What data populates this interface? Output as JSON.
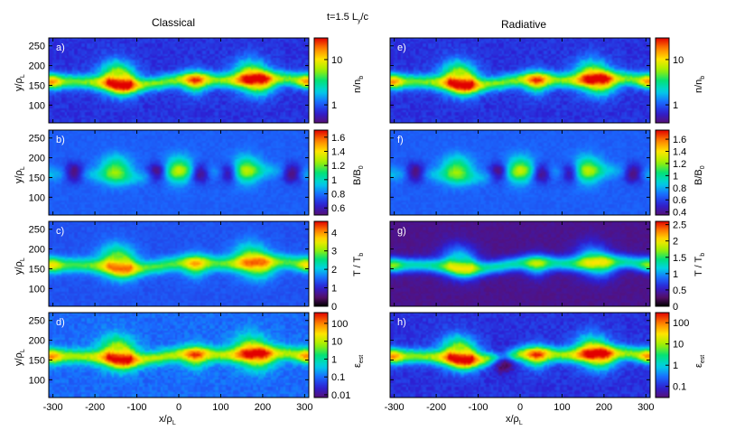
{
  "header": {
    "left_title": "Classical",
    "right_title": "Radiative",
    "time_label": "t=1.5 L",
    "time_sub": "y",
    "time_tail": "/c"
  },
  "axes": {
    "x_label": "x/ρ",
    "x_sub": "L",
    "y_label": "y/ρ",
    "y_sub": "L",
    "x_ticks": [
      "-300",
      "-200",
      "-100",
      "0",
      "100",
      "200",
      "300"
    ],
    "y_ticks": [
      "250",
      "200",
      "150",
      "100"
    ]
  },
  "chart_data": {
    "type": "heatmap",
    "xlim": [
      -310,
      310
    ],
    "ylim": [
      55,
      270
    ],
    "columns": [
      "Classical",
      "Radiative"
    ],
    "panels": [
      {
        "id": "a",
        "label": "a)",
        "column": "Classical",
        "row": 0,
        "quantity": "n/n",
        "quantity_sub": "b",
        "log": true,
        "ticks": [
          "10",
          "1"
        ],
        "tick_values": [
          10,
          1
        ],
        "range": [
          0.4,
          30
        ],
        "mode": "density"
      },
      {
        "id": "b",
        "label": "b)",
        "column": "Classical",
        "row": 1,
        "quantity": "B/B",
        "quantity_sub": "0",
        "log": false,
        "ticks": [
          "1.6",
          "1.4",
          "1.2",
          "1",
          "0.8",
          "0.6"
        ],
        "tick_values": [
          1.6,
          1.4,
          1.2,
          1.0,
          0.8,
          0.6
        ],
        "range": [
          0.5,
          1.7
        ],
        "mode": "bfield"
      },
      {
        "id": "c",
        "label": "c)",
        "column": "Classical",
        "row": 2,
        "quantity": "T / T",
        "quantity_sub": "b",
        "log": false,
        "ticks": [
          "4",
          "3",
          "2",
          "1",
          "0"
        ],
        "tick_values": [
          4,
          3,
          2,
          1,
          0
        ],
        "range": [
          0,
          4.6
        ],
        "mode": "temp"
      },
      {
        "id": "d",
        "label": "d)",
        "column": "Classical",
        "row": 3,
        "quantity": "ε",
        "quantity_sub": "est",
        "log": true,
        "ticks": [
          "100",
          "10",
          "1",
          "0.1",
          "0.01"
        ],
        "tick_values": [
          100,
          10,
          1,
          0.1,
          0.01
        ],
        "range": [
          0.007,
          400
        ],
        "mode": "energy"
      },
      {
        "id": "e",
        "label": "e)",
        "column": "Radiative",
        "row": 0,
        "quantity": "n/n",
        "quantity_sub": "b",
        "log": true,
        "ticks": [
          "10",
          "1"
        ],
        "tick_values": [
          10,
          1
        ],
        "range": [
          0.4,
          30
        ],
        "mode": "density"
      },
      {
        "id": "f",
        "label": "f)",
        "column": "Radiative",
        "row": 1,
        "quantity": "B/B",
        "quantity_sub": "0",
        "log": false,
        "ticks": [
          "1.6",
          "1.4",
          "1.2",
          "1",
          "0.8",
          "0.6",
          "0.4"
        ],
        "tick_values": [
          1.6,
          1.4,
          1.2,
          1.0,
          0.8,
          0.6,
          0.4
        ],
        "range": [
          0.35,
          1.75
        ],
        "mode": "bfield"
      },
      {
        "id": "g",
        "label": "g)",
        "column": "Radiative",
        "row": 2,
        "quantity": "T / T",
        "quantity_sub": "b",
        "log": false,
        "ticks": [
          "2.5",
          "2",
          "1.5",
          "1",
          "0.5",
          "0"
        ],
        "tick_values": [
          2.5,
          2,
          1.5,
          1,
          0.5,
          0
        ],
        "range": [
          0,
          2.6
        ],
        "mode": "tempRad"
      },
      {
        "id": "h",
        "label": "h)",
        "column": "Radiative",
        "row": 3,
        "quantity": "ε",
        "quantity_sub": "est",
        "log": true,
        "ticks": [
          "100",
          "10",
          "1",
          "0.1"
        ],
        "tick_values": [
          100,
          10,
          1,
          0.1
        ],
        "range": [
          0.03,
          300
        ],
        "mode": "energyRad"
      }
    ]
  },
  "colors": {
    "background": "#ffffff",
    "colormap": [
      "#000000",
      "#5a0f6e",
      "#2d1fd2",
      "#1a6bff",
      "#00d2e6",
      "#00e178",
      "#a0f000",
      "#ffe600",
      "#ff8200",
      "#e10000"
    ]
  }
}
